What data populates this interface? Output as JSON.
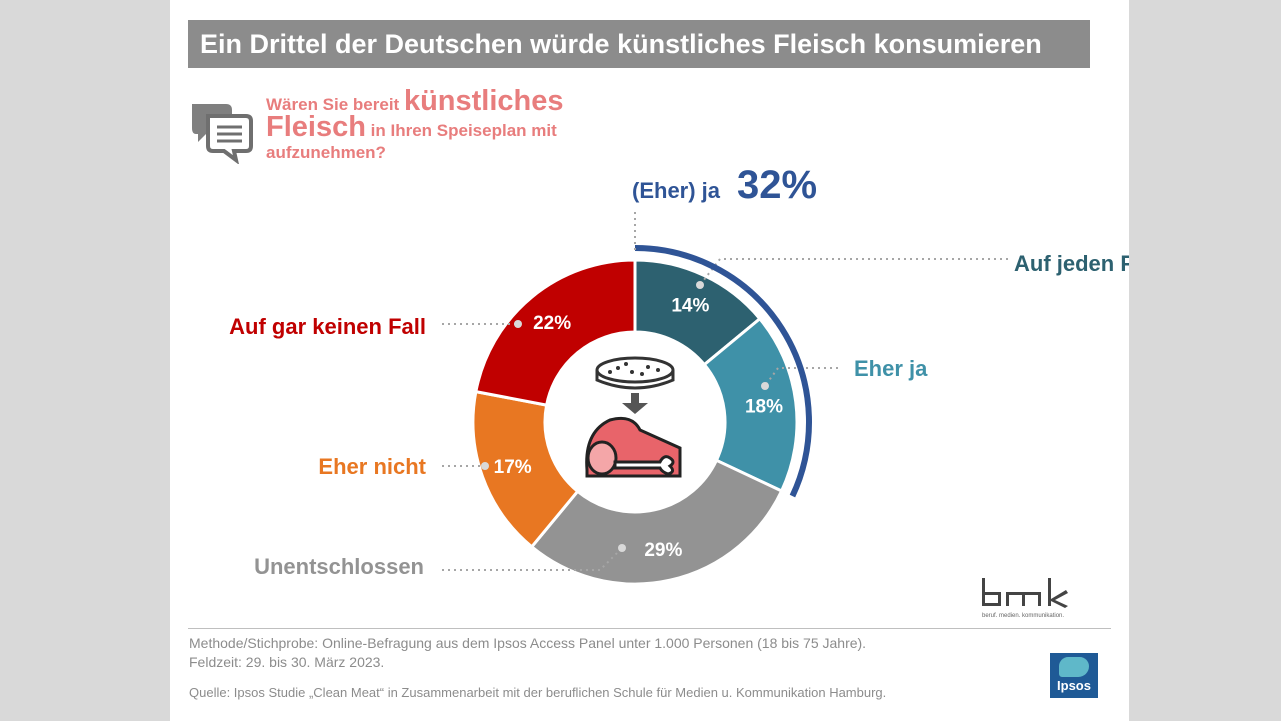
{
  "title": "Ein Drittel der Deutschen würde künstliches Fleisch konsumieren",
  "question": {
    "part1": "Wären Sie bereit ",
    "emph1": "künstliches",
    "emph2": "Fleisch",
    "part2": " in Ihren Speiseplan mit aufzunehmen?",
    "icon": "speech-bubbles-icon"
  },
  "chart_data": {
    "type": "pie",
    "variant": "donut",
    "slices": [
      {
        "label": "Auf jeden Fall",
        "value": 14,
        "value_label": "14%",
        "color": "#2d6170"
      },
      {
        "label": "Eher ja",
        "value": 18,
        "value_label": "18%",
        "color": "#3f91a8"
      },
      {
        "label": "Unentschlossen",
        "value": 29,
        "value_label": "29%",
        "color": "#939393"
      },
      {
        "label": "Eher nicht",
        "value": 17,
        "value_label": "17%",
        "color": "#e87722"
      },
      {
        "label": "Auf gar keinen Fall",
        "value": 22,
        "value_label": "22%",
        "color": "#c00000"
      }
    ],
    "group_annotation": {
      "label": "(Eher) ja",
      "value": "32%",
      "color": "#2f5496"
    },
    "center_icons": [
      "petri-dish-icon",
      "arrow-down-icon",
      "meat-icon"
    ]
  },
  "colors": {
    "title_bg": "#8c8c8c",
    "question": "#e87d7d",
    "accent_blue": "#2f5496"
  },
  "footer": {
    "method": "Methode/Stichprobe: Online-Befragung aus dem Ipsos Access Panel unter 1.000 Personen (18 bis 75 Jahre).",
    "fieldwork": "Feldzeit: 29. bis 30. März 2023.",
    "source": "Quelle: Ipsos Studie „Clean Meat“ in Zusammenarbeit mit der beruflichen Schule für Medien u. Kommunikation Hamburg."
  },
  "logos": {
    "bmk": "bmk",
    "bmk_tagline": "beruf. medien. kommunikation.",
    "ipsos": "Ipsos"
  }
}
